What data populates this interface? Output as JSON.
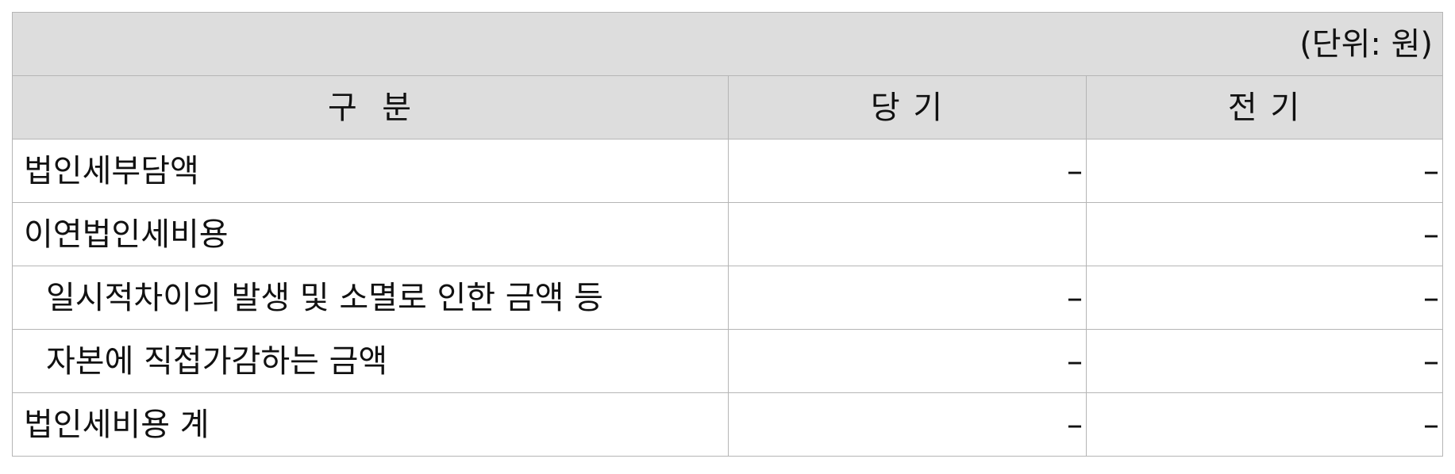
{
  "unit_label": "(단위: 원)",
  "headers": [
    "구  분",
    "당 기",
    "전 기"
  ],
  "rows": [
    {
      "label": "법인세부담액",
      "current": "–",
      "prior": "–",
      "indent": false
    },
    {
      "label": "이연법인세비용",
      "current": "",
      "prior": "–",
      "indent": false
    },
    {
      "label": "일시적차이의 발생 및 소멸로 인한 금액 등",
      "current": "–",
      "prior": "–",
      "indent": true
    },
    {
      "label": "자본에 직접가감하는 금액",
      "current": "–",
      "prior": "–",
      "indent": true
    },
    {
      "label": "법인세비용 계",
      "current": "–",
      "prior": "–",
      "indent": false
    }
  ]
}
